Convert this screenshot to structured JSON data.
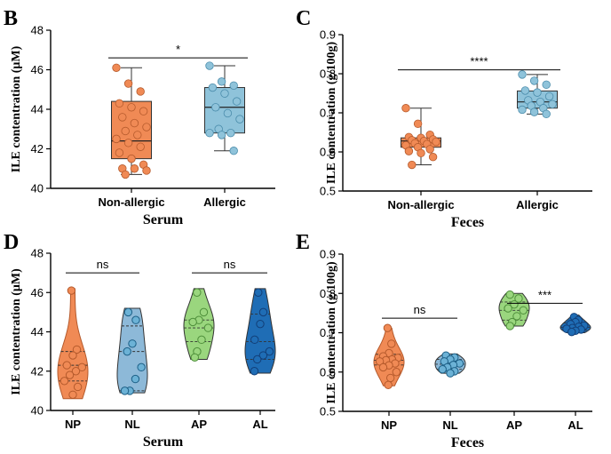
{
  "colors": {
    "orange": "#F08A55",
    "orange_dark": "#B55A2C",
    "blue": "#8FC3DA",
    "blue_dark": "#4A8CAB",
    "nl_fill": "#8DB9D8",
    "nl_dot": "#6CB2D6",
    "green": "#9AD67E",
    "green_dark": "#4E8F3A",
    "navy": "#1F6DB5",
    "navy_dark": "#123F78"
  },
  "chart_data": [
    {
      "panel": "B",
      "type": "box",
      "ylabel": "ILE contentration (μM)",
      "xlabel": "Serum",
      "ylim": [
        40,
        48
      ],
      "yticks": [
        "40",
        "42",
        "44",
        "46",
        "48"
      ],
      "categories": [
        "Non-allergic",
        "Allergic"
      ],
      "series": [
        {
          "name": "Non-allergic",
          "color": "orange",
          "min": 40.7,
          "q1": 41.5,
          "median": 42.4,
          "q3": 44.4,
          "max": 46.1,
          "points": [
            46.1,
            45.3,
            44.9,
            44.3,
            44.1,
            43.9,
            43.6,
            43.3,
            43.1,
            42.9,
            42.7,
            42.5,
            42.3,
            42.1,
            41.8,
            41.5,
            41.2,
            41.0,
            41.0,
            40.9,
            40.7
          ]
        },
        {
          "name": "Allergic",
          "color": "blue",
          "min": 41.9,
          "q1": 42.8,
          "median": 44.1,
          "q3": 45.1,
          "max": 46.2,
          "points": [
            46.2,
            45.4,
            45.2,
            45.1,
            44.8,
            44.4,
            44.1,
            43.8,
            43.5,
            43.0,
            42.8,
            42.8,
            42.7,
            41.9
          ]
        }
      ],
      "significance": [
        {
          "pair": [
            0,
            1
          ],
          "label": "*",
          "y": 46.6
        }
      ]
    },
    {
      "panel": "C",
      "type": "box",
      "ylabel": "ILE contentration (g/100g)",
      "xlabel": "Feces",
      "ylim": [
        0.5,
        0.9
      ],
      "yticks": [
        "0.5",
        "0.6",
        "0.7",
        "0.8",
        "0.9"
      ],
      "categories": [
        "Non-allergic",
        "Allergic"
      ],
      "series": [
        {
          "name": "Non-allergic",
          "color": "orange",
          "min": 0.567,
          "q1": 0.612,
          "median": 0.628,
          "q3": 0.636,
          "max": 0.712,
          "points": [
            0.712,
            0.672,
            0.644,
            0.638,
            0.636,
            0.632,
            0.63,
            0.628,
            0.626,
            0.622,
            0.62,
            0.617,
            0.612,
            0.607,
            0.602,
            0.597,
            0.587,
            0.567
          ]
        },
        {
          "name": "Allergic",
          "color": "blue",
          "min": 0.697,
          "q1": 0.712,
          "median": 0.728,
          "q3": 0.756,
          "max": 0.798,
          "points": [
            0.798,
            0.782,
            0.772,
            0.757,
            0.752,
            0.742,
            0.732,
            0.728,
            0.722,
            0.718,
            0.712,
            0.708,
            0.702,
            0.697
          ]
        }
      ],
      "significance": [
        {
          "pair": [
            0,
            1
          ],
          "label": "****",
          "y": 0.81
        }
      ]
    },
    {
      "panel": "D",
      "type": "violin",
      "ylabel": "ILE contentration (μM)",
      "xlabel": "Serum",
      "ylim": [
        40,
        48
      ],
      "yticks": [
        "40",
        "42",
        "44",
        "46",
        "48"
      ],
      "categories": [
        "NP",
        "NL",
        "AP",
        "AL"
      ],
      "series": [
        {
          "name": "NP",
          "color": "orange",
          "min": 40.6,
          "max": 46.2,
          "q1": 41.5,
          "median": 42.3,
          "q3": 43.0,
          "points": [
            46.1,
            43.1,
            42.8,
            42.3,
            42.2,
            42.0,
            41.8,
            41.5,
            41.2,
            40.8
          ]
        },
        {
          "name": "NL",
          "color": "nl",
          "min": 40.9,
          "max": 45.2,
          "q1": 41.0,
          "median": 43.0,
          "q3": 44.3,
          "points": [
            45.0,
            44.6,
            43.4,
            43.0,
            42.2,
            41.6,
            41.0,
            41.0
          ]
        },
        {
          "name": "AP",
          "color": "green",
          "min": 42.6,
          "max": 46.2,
          "q1": 43.5,
          "median": 44.2,
          "q3": 44.6,
          "points": [
            46.0,
            45.0,
            44.6,
            44.5,
            44.2,
            43.6,
            43.0,
            42.7
          ]
        },
        {
          "name": "AL",
          "color": "navy",
          "min": 41.9,
          "max": 46.2,
          "q1": 42.6,
          "median": 43.5,
          "q3": 44.9,
          "points": [
            46.0,
            45.0,
            44.4,
            43.6,
            43.0,
            42.8,
            42.6,
            42.0
          ]
        }
      ],
      "significance": [
        {
          "pair": [
            0,
            1
          ],
          "label": "ns",
          "y": 47.0
        },
        {
          "pair": [
            2,
            3
          ],
          "label": "ns",
          "y": 47.0
        }
      ]
    },
    {
      "panel": "E",
      "type": "violin",
      "ylabel": "ILE contentration (g/100g)",
      "xlabel": "Feces",
      "ylim": [
        0.5,
        0.9
      ],
      "yticks": [
        "0.5",
        "0.6",
        "0.7",
        "0.8",
        "0.9"
      ],
      "categories": [
        "NP",
        "NL",
        "AP",
        "AL"
      ],
      "series": [
        {
          "name": "NP",
          "color": "orange",
          "min": 0.565,
          "max": 0.712,
          "q1": 0.618,
          "median": 0.63,
          "q3": 0.645,
          "points": [
            0.712,
            0.672,
            0.648,
            0.64,
            0.636,
            0.632,
            0.63,
            0.627,
            0.622,
            0.617,
            0.612,
            0.6,
            0.585,
            0.567
          ]
        },
        {
          "name": "NL",
          "color": "nl",
          "min": 0.597,
          "max": 0.646,
          "q1": 0.607,
          "median": 0.62,
          "q3": 0.632,
          "points": [
            0.642,
            0.637,
            0.632,
            0.627,
            0.622,
            0.618,
            0.612,
            0.607,
            0.602,
            0.597
          ]
        },
        {
          "name": "AP",
          "color": "green",
          "min": 0.717,
          "max": 0.8,
          "q1": 0.732,
          "median": 0.757,
          "q3": 0.778,
          "points": [
            0.797,
            0.787,
            0.772,
            0.762,
            0.757,
            0.742,
            0.727,
            0.717
          ]
        },
        {
          "name": "AL",
          "color": "navy",
          "min": 0.7,
          "max": 0.745,
          "q1": 0.707,
          "median": 0.714,
          "q3": 0.725,
          "points": [
            0.74,
            0.732,
            0.727,
            0.722,
            0.718,
            0.715,
            0.712,
            0.71,
            0.708,
            0.705,
            0.702
          ]
        }
      ],
      "significance": [
        {
          "pair": [
            0,
            1
          ],
          "label": "ns",
          "y": 0.737
        },
        {
          "pair": [
            2,
            3
          ],
          "label": "***",
          "y": 0.775
        }
      ]
    }
  ]
}
